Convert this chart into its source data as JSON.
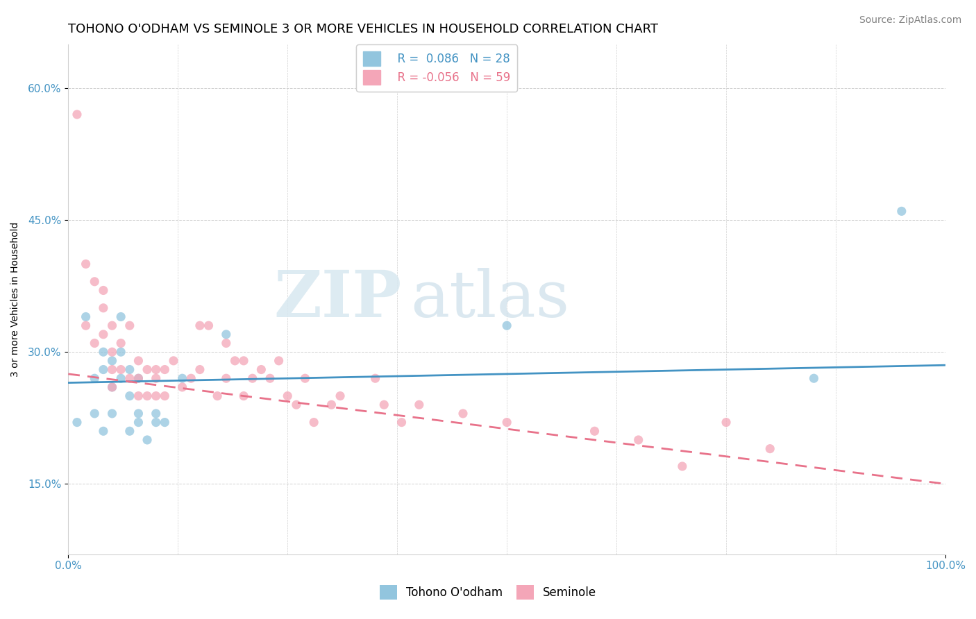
{
  "title": "TOHONO O'ODHAM VS SEMINOLE 3 OR MORE VEHICLES IN HOUSEHOLD CORRELATION CHART",
  "source": "Source: ZipAtlas.com",
  "ylabel": "3 or more Vehicles in Household",
  "xlim": [
    0,
    100
  ],
  "ylim": [
    7,
    65
  ],
  "ytick_vals": [
    15,
    30,
    45,
    60
  ],
  "xtick_labels": [
    "0.0%",
    "100.0%"
  ],
  "legend_r1": "R =  0.086",
  "legend_n1": "N = 28",
  "legend_r2": "R = -0.056",
  "legend_n2": "N = 59",
  "watermark_zip": "ZIP",
  "watermark_atlas": "atlas",
  "color_blue": "#92C5DE",
  "color_pink": "#F4A6B8",
  "color_blue_dark": "#4393C3",
  "color_pink_dark": "#E8728A",
  "tohono_scatter_x": [
    1,
    2,
    3,
    3,
    4,
    4,
    4,
    5,
    5,
    5,
    6,
    6,
    6,
    7,
    7,
    7,
    8,
    8,
    8,
    9,
    10,
    10,
    11,
    13,
    18,
    50,
    85,
    95
  ],
  "tohono_scatter_y": [
    22,
    34,
    23,
    27,
    30,
    28,
    21,
    26,
    23,
    29,
    30,
    27,
    34,
    28,
    25,
    21,
    27,
    23,
    22,
    20,
    23,
    22,
    22,
    27,
    32,
    33,
    27,
    46
  ],
  "seminole_scatter_x": [
    1,
    2,
    2,
    3,
    3,
    4,
    4,
    4,
    5,
    5,
    5,
    5,
    6,
    6,
    7,
    7,
    8,
    8,
    8,
    9,
    9,
    10,
    10,
    10,
    11,
    11,
    12,
    13,
    14,
    15,
    15,
    16,
    17,
    18,
    18,
    19,
    20,
    20,
    21,
    22,
    23,
    24,
    25,
    26,
    27,
    28,
    30,
    31,
    35,
    36,
    38,
    40,
    45,
    50,
    60,
    65,
    70,
    75,
    80
  ],
  "seminole_scatter_y": [
    57,
    40,
    33,
    38,
    31,
    37,
    35,
    32,
    33,
    30,
    28,
    26,
    31,
    28,
    33,
    27,
    29,
    27,
    25,
    28,
    25,
    28,
    27,
    25,
    28,
    25,
    29,
    26,
    27,
    28,
    33,
    33,
    25,
    27,
    31,
    29,
    25,
    29,
    27,
    28,
    27,
    29,
    25,
    24,
    27,
    22,
    24,
    25,
    27,
    24,
    22,
    24,
    23,
    22,
    21,
    20,
    17,
    22,
    19
  ],
  "grid_color": "#d0d0d0",
  "background_color": "#ffffff",
  "title_fontsize": 13,
  "axis_label_fontsize": 10,
  "tick_fontsize": 11,
  "legend_fontsize": 12,
  "source_fontsize": 10,
  "blue_line_y0": 26.5,
  "blue_line_y1": 28.5,
  "pink_line_y0": 27.5,
  "pink_line_y1": 15.0
}
